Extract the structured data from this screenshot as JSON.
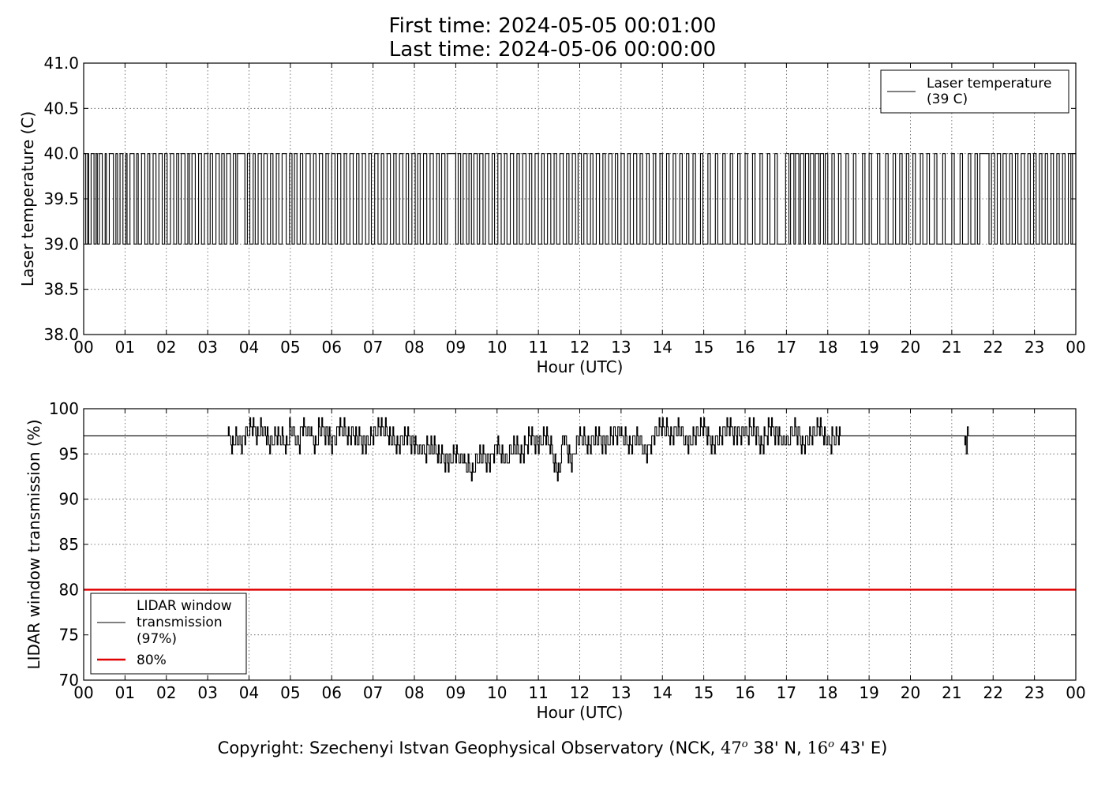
{
  "header": {
    "title_line1": "First time: 2024-05-05 00:01:00",
    "title_line2": "Last time: 2024-05-06 00:00:00"
  },
  "footer": {
    "prefix": "Copyright: Szechenyi Istvan Geophysical Observatory (NCK, ",
    "lat_deg": "47",
    "lat_min": "38' N, ",
    "lon_deg": "16",
    "lon_min": "43' E)",
    "degree_mark": "o"
  },
  "chart_data": [
    {
      "type": "line",
      "xlabel": "Hour (UTC)",
      "ylabel": "Laser temperature (C)",
      "xlim": [
        0,
        24
      ],
      "ylim": [
        38.0,
        41.0
      ],
      "xticks": [
        "00",
        "01",
        "02",
        "03",
        "04",
        "05",
        "06",
        "07",
        "08",
        "09",
        "10",
        "11",
        "12",
        "13",
        "14",
        "15",
        "16",
        "17",
        "18",
        "19",
        "20",
        "21",
        "22",
        "23",
        "00"
      ],
      "yticks": [
        "38.0",
        "38.5",
        "39.0",
        "39.5",
        "40.0",
        "40.5",
        "41.0"
      ],
      "grid": true,
      "legend": {
        "placement": "top-right",
        "entries": [
          "Laser temperature\n(39 C)"
        ]
      },
      "series": [
        {
          "name": "Laser temperature\n(39 C)",
          "color": "#000000",
          "values_allowed": [
            39.0,
            40.0
          ],
          "segments_hours_at_40": [
            [
              0.0,
              0.05
            ],
            [
              0.1,
              0.12
            ],
            [
              0.18,
              0.25
            ],
            [
              0.3,
              0.33
            ],
            [
              0.38,
              0.45
            ],
            [
              0.52,
              0.55
            ],
            [
              0.62,
              0.72
            ],
            [
              0.78,
              0.82
            ],
            [
              0.88,
              0.95
            ],
            [
              1.02,
              1.05
            ],
            [
              1.12,
              1.22
            ],
            [
              1.28,
              1.32
            ],
            [
              1.4,
              1.48
            ],
            [
              1.55,
              1.6
            ],
            [
              1.68,
              1.75
            ],
            [
              1.82,
              1.9
            ],
            [
              1.96,
              2.02
            ],
            [
              2.1,
              2.18
            ],
            [
              2.25,
              2.3
            ],
            [
              2.36,
              2.45
            ],
            [
              2.52,
              2.56
            ],
            [
              2.62,
              2.7
            ],
            [
              2.78,
              2.85
            ],
            [
              2.92,
              3.0
            ],
            [
              3.06,
              3.12
            ],
            [
              3.2,
              3.28
            ],
            [
              3.34,
              3.4
            ],
            [
              3.46,
              3.55
            ],
            [
              3.62,
              3.68
            ],
            [
              3.72,
              3.9
            ],
            [
              3.96,
              4.02
            ],
            [
              4.1,
              4.15
            ],
            [
              4.22,
              4.3
            ],
            [
              4.36,
              4.44
            ],
            [
              4.52,
              4.58
            ],
            [
              4.66,
              4.72
            ],
            [
              4.8,
              4.9
            ],
            [
              4.98,
              5.04
            ],
            [
              5.1,
              5.16
            ],
            [
              5.24,
              5.3
            ],
            [
              5.38,
              5.48
            ],
            [
              5.56,
              5.62
            ],
            [
              5.7,
              5.78
            ],
            [
              5.86,
              5.92
            ],
            [
              6.0,
              6.08
            ],
            [
              6.14,
              6.22
            ],
            [
              6.3,
              6.36
            ],
            [
              6.44,
              6.52
            ],
            [
              6.6,
              6.66
            ],
            [
              6.74,
              6.82
            ],
            [
              6.9,
              6.96
            ],
            [
              7.04,
              7.12
            ],
            [
              7.2,
              7.26
            ],
            [
              7.34,
              7.42
            ],
            [
              7.5,
              7.56
            ],
            [
              7.64,
              7.72
            ],
            [
              7.8,
              7.86
            ],
            [
              7.94,
              8.02
            ],
            [
              8.08,
              8.14
            ],
            [
              8.22,
              8.3
            ],
            [
              8.38,
              8.46
            ],
            [
              8.54,
              8.6
            ],
            [
              8.66,
              8.74
            ],
            [
              8.8,
              9.0
            ],
            [
              9.06,
              9.12
            ],
            [
              9.18,
              9.26
            ],
            [
              9.32,
              9.38
            ],
            [
              9.44,
              9.52
            ],
            [
              9.58,
              9.66
            ],
            [
              9.72,
              9.8
            ],
            [
              9.88,
              9.94
            ],
            [
              10.02,
              10.1
            ],
            [
              10.18,
              10.24
            ],
            [
              10.32,
              10.4
            ],
            [
              10.48,
              10.54
            ],
            [
              10.62,
              10.7
            ],
            [
              10.78,
              10.84
            ],
            [
              10.92,
              11.0
            ],
            [
              11.08,
              11.14
            ],
            [
              11.22,
              11.3
            ],
            [
              11.38,
              11.44
            ],
            [
              11.52,
              11.6
            ],
            [
              11.68,
              11.74
            ],
            [
              11.82,
              11.9
            ],
            [
              11.96,
              12.04
            ],
            [
              12.1,
              12.18
            ],
            [
              12.26,
              12.32
            ],
            [
              12.4,
              12.48
            ],
            [
              12.56,
              12.62
            ],
            [
              12.7,
              12.78
            ],
            [
              12.86,
              12.92
            ],
            [
              13.0,
              13.08
            ],
            [
              13.16,
              13.22
            ],
            [
              13.3,
              13.38
            ],
            [
              13.46,
              13.52
            ],
            [
              13.62,
              13.68
            ],
            [
              13.78,
              13.84
            ],
            [
              13.94,
              14.0
            ],
            [
              14.1,
              14.16
            ],
            [
              14.26,
              14.32
            ],
            [
              14.42,
              14.48
            ],
            [
              14.58,
              14.64
            ],
            [
              14.74,
              14.8
            ],
            [
              14.92,
              14.98
            ],
            [
              15.1,
              15.16
            ],
            [
              15.28,
              15.34
            ],
            [
              15.46,
              15.52
            ],
            [
              15.64,
              15.7
            ],
            [
              15.82,
              15.88
            ],
            [
              16.0,
              16.06
            ],
            [
              16.18,
              16.24
            ],
            [
              16.36,
              16.42
            ],
            [
              16.54,
              16.6
            ],
            [
              16.72,
              16.78
            ],
            [
              16.98,
              17.06
            ],
            [
              17.1,
              17.18
            ],
            [
              17.22,
              17.3
            ],
            [
              17.34,
              17.42
            ],
            [
              17.46,
              17.54
            ],
            [
              17.58,
              17.66
            ],
            [
              17.7,
              17.78
            ],
            [
              17.82,
              17.9
            ],
            [
              17.94,
              18.0
            ],
            [
              18.1,
              18.16
            ],
            [
              18.26,
              18.32
            ],
            [
              18.44,
              18.5
            ],
            [
              18.62,
              18.68
            ],
            [
              18.84,
              18.9
            ],
            [
              19.0,
              19.06
            ],
            [
              19.2,
              19.26
            ],
            [
              19.4,
              19.46
            ],
            [
              19.58,
              19.64
            ],
            [
              19.74,
              19.8
            ],
            [
              19.9,
              19.96
            ],
            [
              20.06,
              20.12
            ],
            [
              20.24,
              20.3
            ],
            [
              20.4,
              20.46
            ],
            [
              20.58,
              20.64
            ],
            [
              20.78,
              20.84
            ],
            [
              21.0,
              21.06
            ],
            [
              21.2,
              21.26
            ],
            [
              21.4,
              21.46
            ],
            [
              21.56,
              21.62
            ],
            [
              21.68,
              21.9
            ],
            [
              21.96,
              22.04
            ],
            [
              22.1,
              22.18
            ],
            [
              22.24,
              22.32
            ],
            [
              22.4,
              22.46
            ],
            [
              22.54,
              22.6
            ],
            [
              22.68,
              22.76
            ],
            [
              22.84,
              22.9
            ],
            [
              22.98,
              23.04
            ],
            [
              23.12,
              23.18
            ],
            [
              23.26,
              23.32
            ],
            [
              23.4,
              23.46
            ],
            [
              23.54,
              23.6
            ],
            [
              23.68,
              23.74
            ],
            [
              23.82,
              23.88
            ],
            [
              23.92,
              24.0
            ]
          ]
        }
      ]
    },
    {
      "type": "line",
      "xlabel": "Hour (UTC)",
      "ylabel": "LIDAR window transmission (%)",
      "xlim": [
        0,
        24
      ],
      "ylim": [
        70,
        100
      ],
      "xticks": [
        "00",
        "01",
        "02",
        "03",
        "04",
        "05",
        "06",
        "07",
        "08",
        "09",
        "10",
        "11",
        "12",
        "13",
        "14",
        "15",
        "16",
        "17",
        "18",
        "19",
        "20",
        "21",
        "22",
        "23",
        "00"
      ],
      "yticks": [
        "70",
        "75",
        "80",
        "85",
        "90",
        "95",
        "100"
      ],
      "grid": true,
      "legend": {
        "placement": "bottom-left",
        "entries": [
          "LIDAR window\ntransmission\n(97%)",
          "80%"
        ]
      },
      "series": [
        {
          "name": "LIDAR window\ntransmission\n(97%)",
          "color": "#000000",
          "baseline": 97,
          "anchors": [
            [
              0.0,
              97
            ],
            [
              3.5,
              97
            ],
            [
              3.6,
              96
            ],
            [
              3.7,
              97
            ],
            [
              3.8,
              96
            ],
            [
              3.9,
              97
            ],
            [
              4.1,
              98
            ],
            [
              4.2,
              97
            ],
            [
              4.3,
              98
            ],
            [
              4.4,
              97
            ],
            [
              4.5,
              96
            ],
            [
              4.7,
              97
            ],
            [
              4.9,
              96
            ],
            [
              5.0,
              98
            ],
            [
              5.2,
              96
            ],
            [
              5.3,
              98
            ],
            [
              5.5,
              97
            ],
            [
              5.6,
              96
            ],
            [
              5.7,
              98
            ],
            [
              5.9,
              97
            ],
            [
              6.0,
              96
            ],
            [
              6.2,
              98
            ],
            [
              6.4,
              97
            ],
            [
              6.6,
              97
            ],
            [
              6.8,
              96
            ],
            [
              7.0,
              97
            ],
            [
              7.2,
              98
            ],
            [
              7.4,
              97
            ],
            [
              7.6,
              96
            ],
            [
              7.8,
              97
            ],
            [
              8.0,
              96
            ],
            [
              8.2,
              95
            ],
            [
              8.4,
              96
            ],
            [
              8.6,
              95
            ],
            [
              8.8,
              94
            ],
            [
              9.0,
              95
            ],
            [
              9.2,
              94
            ],
            [
              9.4,
              93
            ],
            [
              9.6,
              95
            ],
            [
              9.8,
              94
            ],
            [
              10.0,
              96
            ],
            [
              10.2,
              94
            ],
            [
              10.4,
              96
            ],
            [
              10.6,
              95
            ],
            [
              10.8,
              97
            ],
            [
              11.0,
              96
            ],
            [
              11.2,
              97
            ],
            [
              11.4,
              94
            ],
            [
              11.5,
              93
            ],
            [
              11.6,
              97
            ],
            [
              11.8,
              94
            ],
            [
              12.0,
              97
            ],
            [
              12.2,
              96
            ],
            [
              12.4,
              97
            ],
            [
              12.6,
              96
            ],
            [
              12.8,
              97
            ],
            [
              13.0,
              97
            ],
            [
              13.2,
              96
            ],
            [
              13.4,
              97
            ],
            [
              13.6,
              95
            ],
            [
              13.8,
              97
            ],
            [
              14.0,
              98
            ],
            [
              14.2,
              97
            ],
            [
              14.4,
              98
            ],
            [
              14.6,
              96
            ],
            [
              14.8,
              97
            ],
            [
              15.0,
              98
            ],
            [
              15.2,
              96
            ],
            [
              15.4,
              97
            ],
            [
              15.6,
              98
            ],
            [
              15.8,
              97
            ],
            [
              16.0,
              97
            ],
            [
              16.2,
              98
            ],
            [
              16.4,
              96
            ],
            [
              16.6,
              98
            ],
            [
              16.8,
              97
            ],
            [
              17.0,
              96
            ],
            [
              17.2,
              98
            ],
            [
              17.4,
              96
            ],
            [
              17.6,
              97
            ],
            [
              17.8,
              98
            ],
            [
              18.0,
              96
            ],
            [
              18.2,
              97
            ],
            [
              18.3,
              97
            ],
            [
              21.3,
              97
            ],
            [
              21.35,
              96
            ],
            [
              21.4,
              97
            ],
            [
              24.0,
              97
            ]
          ]
        },
        {
          "name": "80%",
          "color": "#e00000",
          "constant": 80
        }
      ]
    }
  ]
}
